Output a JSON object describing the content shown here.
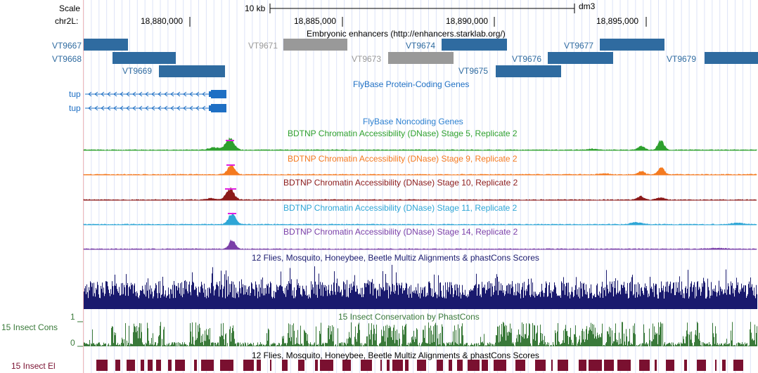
{
  "ruler": {
    "scale_label": "Scale",
    "chrom_label": "chr2L:",
    "scale_bar_label": "10 kb",
    "assembly": "dm3",
    "positions": [
      "18,880,000",
      "18,885,000",
      "18,890,000",
      "18,895,000"
    ]
  },
  "tracks": {
    "enhancers": {
      "title": "Embryonic enhancers (http://enhancers.starklab.org/)",
      "items": [
        {
          "name": "VT9667",
          "color": "#2f6ba0"
        },
        {
          "name": "VT9668",
          "color": "#2f6ba0"
        },
        {
          "name": "VT9669",
          "color": "#2f6ba0"
        },
        {
          "name": "VT9671",
          "color": "#999999"
        },
        {
          "name": "VT9673",
          "color": "#999999"
        },
        {
          "name": "VT9674",
          "color": "#2f6ba0"
        },
        {
          "name": "VT9675",
          "color": "#2f6ba0"
        },
        {
          "name": "VT9676",
          "color": "#2f6ba0"
        },
        {
          "name": "VT9677",
          "color": "#2f6ba0"
        },
        {
          "name": "VT9679",
          "color": "#2f6ba0"
        }
      ]
    },
    "protein_genes": {
      "title": "FlyBase Protein-Coding Genes",
      "genes": [
        "tup",
        "tup"
      ],
      "color": "#1e6fc4"
    },
    "noncoding_genes": {
      "title": "FlyBase Noncoding Genes",
      "color": "#2b7fd0"
    },
    "dnase": [
      {
        "title": "BDTNP Chromatin Accessibility (DNase) Stage 5, Replicate 2",
        "color": "#2ea02e"
      },
      {
        "title": "BDTNP Chromatin Accessibility (DNase) Stage 9, Replicate 2",
        "color": "#f47a20"
      },
      {
        "title": "BDTNP Chromatin Accessibility (DNase) Stage 10, Replicate 2",
        "color": "#8b1a1a"
      },
      {
        "title": "BDTNP Chromatin Accessibility (DNase) Stage 11, Replicate 2",
        "color": "#2ea6d6"
      },
      {
        "title": "BDTNP Chromatin Accessibility (DNase) Stage 14, Replicate 2",
        "color": "#7a3fa8"
      }
    ],
    "multiz": {
      "title": "12 Flies, Mosquito, Honeybee, Beetle Multiz Alignments & phastCons Scores",
      "color": "#1a1a6e"
    },
    "insect_cons": {
      "title": "15 Insect Conservation by PhastCons",
      "left_label": "15 Insect Cons",
      "axis_max": "1",
      "axis_min": "0",
      "color": "#3a7a3a"
    },
    "insect_el": {
      "title": "12 Flies, Mosquito, Honeybee, Beetle Multiz Alignments & phastCons Scores",
      "left_label": "15 Insect El",
      "color": "#7a1030"
    }
  }
}
